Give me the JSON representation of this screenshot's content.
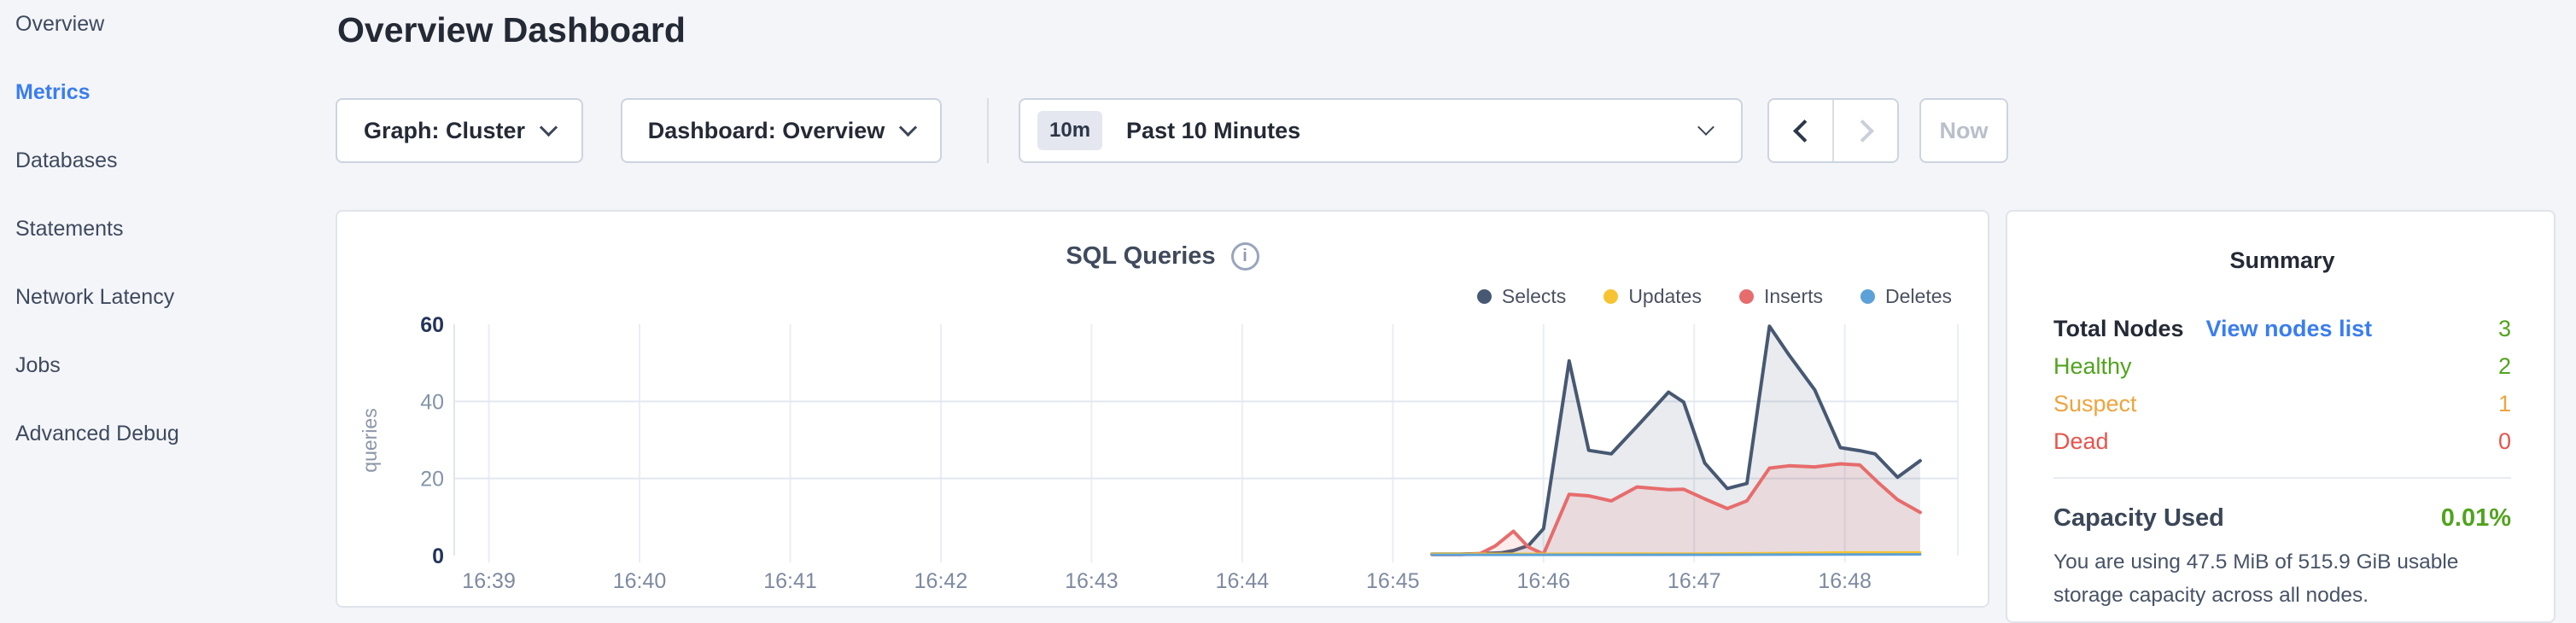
{
  "header": {
    "title": "Overview Dashboard"
  },
  "sidebar": {
    "items": [
      {
        "label": "Overview",
        "active": false
      },
      {
        "label": "Metrics",
        "active": true
      },
      {
        "label": "Databases",
        "active": false
      },
      {
        "label": "Statements",
        "active": false
      },
      {
        "label": "Network Latency",
        "active": false
      },
      {
        "label": "Jobs",
        "active": false
      },
      {
        "label": "Advanced Debug",
        "active": false
      }
    ]
  },
  "toolbar": {
    "graph_dropdown_label": "Graph: Cluster",
    "dashboard_dropdown_label": "Dashboard: Overview",
    "time_window_badge": "10m",
    "time_window_label": "Past 10 Minutes",
    "now_label": "Now"
  },
  "chart": {
    "title": "SQL Queries",
    "legend": [
      {
        "label": "Selects",
        "color": "#475872"
      },
      {
        "label": "Updates",
        "color": "#f6c431"
      },
      {
        "label": "Inserts",
        "color": "#e76c6c"
      },
      {
        "label": "Deletes",
        "color": "#5ca1d8"
      }
    ]
  },
  "chart_data": {
    "type": "area",
    "title": "SQL Queries",
    "xlabel": "",
    "ylabel": "queries",
    "ylim": [
      0,
      60
    ],
    "yticks": [
      0,
      20,
      40,
      60
    ],
    "emphasized_yticks": [
      0,
      60
    ],
    "x_tick_labels": [
      "16:39",
      "16:40",
      "16:41",
      "16:42",
      "16:43",
      "16:44",
      "16:45",
      "16:46",
      "16:47",
      "16:48"
    ],
    "x_unit": "minutes after 16:39",
    "x_domain": [
      -0.23,
      9.75
    ],
    "grid": "on",
    "legend_position": "top-right",
    "draw_order": [
      "Selects",
      "Inserts",
      "Updates",
      "Deletes"
    ],
    "series": [
      {
        "name": "Selects",
        "color": "#475872",
        "fill": "rgba(71,88,114,0.12)",
        "line_width": 4,
        "points": [
          [
            6.26,
            0.4
          ],
          [
            6.45,
            0.4
          ],
          [
            6.58,
            0.5
          ],
          [
            6.72,
            0.7
          ],
          [
            6.8,
            1.3
          ],
          [
            6.9,
            2.6
          ],
          [
            7.0,
            7.0
          ],
          [
            7.17,
            50.5
          ],
          [
            7.3,
            27.3
          ],
          [
            7.45,
            26.4
          ],
          [
            7.62,
            33.5
          ],
          [
            7.83,
            42.4
          ],
          [
            7.93,
            39.8
          ],
          [
            8.07,
            24.0
          ],
          [
            8.22,
            17.4
          ],
          [
            8.35,
            18.7
          ],
          [
            8.5,
            59.5
          ],
          [
            8.63,
            52.0
          ],
          [
            8.8,
            43.0
          ],
          [
            8.97,
            28.0
          ],
          [
            9.1,
            27.2
          ],
          [
            9.2,
            26.4
          ],
          [
            9.35,
            20.3
          ],
          [
            9.5,
            24.6
          ]
        ]
      },
      {
        "name": "Inserts",
        "color": "#e76c6c",
        "fill": "rgba(231,108,108,0.13)",
        "line_width": 4,
        "points": [
          [
            6.26,
            0.25
          ],
          [
            6.45,
            0.25
          ],
          [
            6.58,
            0.5
          ],
          [
            6.68,
            2.5
          ],
          [
            6.8,
            6.3
          ],
          [
            6.9,
            2.2
          ],
          [
            7.0,
            0.4
          ],
          [
            7.17,
            15.9
          ],
          [
            7.3,
            15.5
          ],
          [
            7.45,
            14.2
          ],
          [
            7.62,
            17.8
          ],
          [
            7.83,
            17.1
          ],
          [
            7.93,
            17.2
          ],
          [
            8.07,
            14.7
          ],
          [
            8.22,
            12.2
          ],
          [
            8.35,
            14.2
          ],
          [
            8.5,
            22.7
          ],
          [
            8.63,
            23.3
          ],
          [
            8.8,
            23.0
          ],
          [
            8.97,
            23.8
          ],
          [
            9.1,
            23.5
          ],
          [
            9.22,
            19.0
          ],
          [
            9.35,
            14.5
          ],
          [
            9.5,
            11.2
          ]
        ]
      },
      {
        "name": "Updates",
        "color": "#f6c431",
        "fill": "rgba(246,196,49,0.2)",
        "line_width": 3,
        "points": [
          [
            6.26,
            0.45
          ],
          [
            7.0,
            0.45
          ],
          [
            7.5,
            0.5
          ],
          [
            8.0,
            0.5
          ],
          [
            8.5,
            0.6
          ],
          [
            9.0,
            0.8
          ],
          [
            9.5,
            0.8
          ]
        ]
      },
      {
        "name": "Deletes",
        "color": "#5ca1d8",
        "fill": "rgba(92,161,216,0.2)",
        "line_width": 3,
        "points": [
          [
            6.26,
            0.2
          ],
          [
            7.5,
            0.2
          ],
          [
            8.5,
            0.25
          ],
          [
            9.5,
            0.3
          ]
        ]
      }
    ]
  },
  "summary": {
    "title": "Summary",
    "total_nodes_label": "Total Nodes",
    "view_nodes_link": "View nodes list",
    "total_nodes_value": "3",
    "total_nodes_color": "#51a31e",
    "node_status": [
      {
        "label": "Healthy",
        "value": "2",
        "color": "#51a31e"
      },
      {
        "label": "Suspect",
        "value": "1",
        "color": "#efa33d"
      },
      {
        "label": "Dead",
        "value": "0",
        "color": "#e6544c"
      }
    ],
    "capacity_label": "Capacity Used",
    "capacity_value": "0.01%",
    "capacity_color": "#51a31e",
    "capacity_description": "You are using 47.5 MiB of 515.9 GiB usable storage capacity across all nodes."
  },
  "colors": {
    "page_bg": "#f4f5f9",
    "card_bg": "#ffffff",
    "card_border": "#dfe4eb",
    "text_dark": "#242a35",
    "text_slate": "#3e4a5e",
    "axis_gray": "#7e8aa0",
    "link_blue": "#3a7df0",
    "disabled_text": "#b9c0cb"
  }
}
